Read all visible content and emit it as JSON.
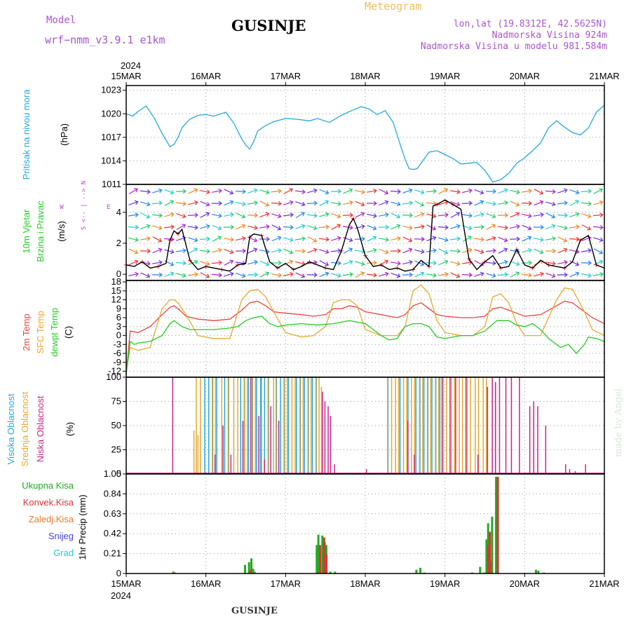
{
  "header": {
    "model_label": "Model",
    "model_name": "wrf−nmm_v3.9.1  e1km",
    "station_title": "GUSINJE",
    "meteogram_label": "Meteogram",
    "coords": "lon,lat (19.8312E, 42.5625N)",
    "elevation": "Nadmorska Visina 924m",
    "model_elevation": "Nadmorska Visina u modelu 981.584m",
    "year_top": "2024",
    "year_bottom": "2024",
    "footer_title": "GUSINJE",
    "credit": "made by Angel"
  },
  "colors": {
    "pressure": "#22a8e0",
    "temp2m": "#f04040",
    "sfc": "#e8a830",
    "dew": "#22cc22",
    "high_cloud": "#22a8e0",
    "mid_cloud": "#e8a830",
    "low_cloud": "#cc2288",
    "total_precip": "#22aa22",
    "conv_precip": "#dd3333",
    "frozen_precip": "#ee7722",
    "snow": "#4444dd",
    "hail": "#22cccc",
    "wind_speed": "#000000",
    "wind_dir": "#ff2222",
    "wind_compass": "#bb44dd",
    "label_purple": "#aa55cc",
    "meteogram": "#e8c060"
  },
  "chart_data": [
    {
      "type": "line",
      "panel": "pressure",
      "ylabel_lines": [
        "Pritisak na nivou mora",
        "(hPa)"
      ],
      "y_ticks": [
        1011,
        1014,
        1017,
        1020,
        1023
      ],
      "ylim": [
        1011,
        1023.6
      ],
      "x_ticks": [
        "15MAR",
        "16MAR",
        "17MAR",
        "18MAR",
        "19MAR",
        "20MAR",
        "21MAR"
      ],
      "xlim_days": [
        0,
        6
      ],
      "series": [
        {
          "color_key": "pressure",
          "x": [
            0,
            0.08,
            0.15,
            0.25,
            0.35,
            0.45,
            0.55,
            0.6,
            0.65,
            0.7,
            0.75,
            0.8,
            0.9,
            1.0,
            1.1,
            1.25,
            1.35,
            1.45,
            1.5,
            1.55,
            1.6,
            1.65,
            1.75,
            1.85,
            2.0,
            2.15,
            2.3,
            2.4,
            2.55,
            2.7,
            2.85,
            2.95,
            3.05,
            3.15,
            3.25,
            3.35,
            3.45,
            3.5,
            3.55,
            3.6,
            3.65,
            3.7,
            3.8,
            3.9,
            4.0,
            4.1,
            4.2,
            4.3,
            4.4,
            4.5,
            4.6,
            4.7,
            4.8,
            4.9,
            5.0,
            5.1,
            5.2,
            5.3,
            5.4,
            5.5,
            5.6,
            5.7,
            5.8,
            5.9,
            6.0
          ],
          "y": [
            1020,
            1019.7,
            1020.3,
            1021,
            1019.5,
            1017.5,
            1015.8,
            1016.1,
            1017,
            1018.2,
            1018.8,
            1019.3,
            1019.8,
            1019.9,
            1019.7,
            1020.2,
            1018.8,
            1016.8,
            1016,
            1015.5,
            1016.5,
            1017.8,
            1018.5,
            1019,
            1019.4,
            1019.3,
            1019.1,
            1019.4,
            1018.9,
            1019.8,
            1020.5,
            1020.9,
            1020.6,
            1019.9,
            1020.4,
            1018.9,
            1015.7,
            1014.2,
            1013,
            1012.9,
            1013,
            1013.7,
            1015.1,
            1015.3,
            1014.8,
            1014.3,
            1013.6,
            1013.7,
            1013.8,
            1012.8,
            1011.3,
            1011.6,
            1012.4,
            1013.7,
            1014.4,
            1015.3,
            1016.3,
            1018.2,
            1019.1,
            1018.3,
            1017.6,
            1017.3,
            1018.2,
            1020.2,
            1021.1
          ]
        }
      ]
    },
    {
      "type": "line",
      "panel": "wind",
      "ylabel_lines": [
        "10m Vjetar",
        "Brzina i Pravac",
        "(m/s)"
      ],
      "compass_lines": [
        "N",
        "^",
        "|",
        "W <-- --> E",
        "|",
        "v",
        "S"
      ],
      "y_ticks": [
        0,
        2,
        4
      ],
      "ylim": [
        -0.4,
        5.8
      ],
      "series": [
        {
          "name": "speed",
          "color_key": "wind_speed",
          "x": [
            0,
            0.1,
            0.2,
            0.3,
            0.4,
            0.5,
            0.55,
            0.6,
            0.65,
            0.7,
            0.8,
            0.9,
            1.0,
            1.1,
            1.2,
            1.3,
            1.4,
            1.5,
            1.55,
            1.6,
            1.7,
            1.8,
            1.9,
            2.0,
            2.1,
            2.2,
            2.3,
            2.4,
            2.5,
            2.6,
            2.7,
            2.8,
            2.85,
            2.9,
            3.0,
            3.1,
            3.2,
            3.3,
            3.4,
            3.5,
            3.6,
            3.7,
            3.8,
            3.85,
            3.9,
            4.0,
            4.1,
            4.2,
            4.3,
            4.4,
            4.5,
            4.6,
            4.7,
            4.8,
            4.9,
            5.0,
            5.1,
            5.2,
            5.3,
            5.4,
            5.5,
            5.6,
            5.7,
            5.8,
            5.9,
            6.0
          ],
          "y": [
            0.6,
            0.5,
            0.8,
            0.4,
            0.5,
            0.7,
            2.2,
            2.8,
            2.6,
            2.9,
            0.9,
            0.3,
            0.5,
            0.4,
            0.3,
            0.2,
            0.6,
            0.7,
            2.4,
            2.6,
            2.5,
            0.8,
            0.4,
            0.7,
            0.3,
            0.5,
            0.8,
            0.6,
            0.4,
            0.3,
            1.5,
            3.2,
            3.6,
            3.0,
            1.2,
            0.5,
            0.6,
            0.3,
            0.4,
            0.2,
            0.3,
            0.9,
            0.5,
            4.4,
            4.5,
            4.8,
            4.5,
            4.2,
            1.0,
            0.3,
            0.8,
            1.2,
            0.4,
            0.5,
            1.6,
            0.6,
            0.4,
            0.9,
            0.6,
            0.5,
            0.4,
            0.8,
            2.2,
            2.5,
            0.6,
            0.4
          ]
        }
      ]
    },
    {
      "type": "line",
      "panel": "temperature",
      "ylabel_lines": [
        "2m Temp",
        "SFC Temp",
        "dewpt Temp",
        "(C)"
      ],
      "y_ticks": [
        -12,
        -9,
        -6,
        -3,
        0,
        3,
        6,
        9,
        12,
        15,
        18
      ],
      "ylim": [
        -14,
        18.5
      ],
      "series": [
        {
          "name": "2m Temp",
          "color_key": "temp2m",
          "x": [
            0,
            0.05,
            0.15,
            0.3,
            0.45,
            0.55,
            0.6,
            0.65,
            0.75,
            0.9,
            1.1,
            1.3,
            1.45,
            1.55,
            1.65,
            1.75,
            1.85,
            2.0,
            2.2,
            2.35,
            2.5,
            2.6,
            2.7,
            2.8,
            2.9,
            3.0,
            3.2,
            3.4,
            3.5,
            3.6,
            3.7,
            3.8,
            3.9,
            4.0,
            4.2,
            4.35,
            4.5,
            4.6,
            4.7,
            4.8,
            4.9,
            5.0,
            5.2,
            5.4,
            5.5,
            5.6,
            5.75,
            5.85,
            6.0
          ],
          "y": [
            -13,
            1.5,
            1,
            3,
            7,
            9.5,
            10,
            9,
            6.5,
            5.5,
            5,
            5.5,
            8.5,
            11,
            11.5,
            10,
            8,
            7.5,
            7,
            6.5,
            7,
            9,
            9,
            10,
            9.5,
            8,
            7,
            6,
            7,
            10,
            11,
            9,
            7,
            6.5,
            6,
            6,
            6.5,
            9,
            9.5,
            8.5,
            7.5,
            6.5,
            7,
            10,
            11.5,
            11,
            8,
            6,
            4
          ]
        },
        {
          "name": "SFC Temp",
          "color_key": "sfc",
          "x": [
            0,
            0.05,
            0.15,
            0.3,
            0.45,
            0.55,
            0.6,
            0.65,
            0.75,
            0.9,
            1.1,
            1.3,
            1.45,
            1.55,
            1.65,
            1.75,
            1.85,
            2.0,
            2.2,
            2.35,
            2.5,
            2.6,
            2.7,
            2.8,
            2.9,
            3.0,
            3.2,
            3.4,
            3.5,
            3.6,
            3.7,
            3.8,
            3.9,
            4.0,
            4.2,
            4.35,
            4.5,
            4.6,
            4.7,
            4.8,
            4.9,
            5.0,
            5.2,
            5.4,
            5.5,
            5.6,
            5.75,
            5.85,
            6.0
          ],
          "y": [
            -12,
            -4,
            -5,
            -4,
            9,
            12,
            12,
            11,
            7,
            0,
            -1,
            -1,
            12,
            15,
            15.5,
            13,
            8,
            1,
            -0.5,
            0,
            3,
            11,
            12,
            12,
            10,
            2,
            0,
            0,
            3,
            15,
            17,
            14,
            5,
            1,
            0,
            0,
            3,
            13,
            14,
            11,
            4,
            0,
            0,
            12,
            16,
            15.5,
            8,
            2,
            0
          ]
        },
        {
          "name": "dewpt Temp",
          "color_key": "dew",
          "x": [
            0,
            0.05,
            0.1,
            0.15,
            0.3,
            0.45,
            0.55,
            0.6,
            0.7,
            0.8,
            0.9,
            1.1,
            1.3,
            1.4,
            1.5,
            1.6,
            1.7,
            1.8,
            1.9,
            2.0,
            2.2,
            2.4,
            2.6,
            2.8,
            3.0,
            3.1,
            3.2,
            3.3,
            3.4,
            3.5,
            3.6,
            3.7,
            3.8,
            3.9,
            4.0,
            4.2,
            4.35,
            4.5,
            4.65,
            4.8,
            4.9,
            5.0,
            5.1,
            5.2,
            5.3,
            5.45,
            5.55,
            5.65,
            5.75,
            5.8,
            5.9,
            6.0
          ],
          "y": [
            -13,
            -2,
            -3,
            -2.5,
            -2,
            0,
            4,
            5,
            3,
            2,
            2,
            2,
            2.5,
            3,
            5,
            6,
            6.5,
            4,
            3,
            3.5,
            4,
            3.5,
            4,
            5,
            4,
            2,
            0,
            -1.5,
            -1,
            3,
            4,
            4,
            3,
            -0.5,
            -1,
            0,
            0,
            1.5,
            5,
            5,
            3.5,
            3,
            4,
            2,
            -1,
            -4,
            -3,
            -6,
            -3,
            -0.5,
            -1,
            -2
          ]
        }
      ]
    },
    {
      "type": "bar",
      "panel": "cloud",
      "ylabel_lines": [
        "Visoka Oblacnost",
        "Srednja Oblacnost",
        "Niska Oblacnost",
        "(%)"
      ],
      "y_ticks": [
        0,
        25,
        50,
        75,
        100
      ],
      "ylim": [
        0,
        100
      ],
      "series": [
        {
          "name": "Visoka Oblacnost",
          "color_key": "high_cloud",
          "x": [
            1.0,
            1.05,
            1.1,
            1.15,
            1.25,
            1.3,
            1.45,
            1.5,
            1.55,
            1.6,
            1.65,
            1.7,
            1.75,
            1.8,
            1.9,
            1.95,
            2.0,
            2.05,
            2.15,
            2.2,
            2.25,
            2.3,
            2.35,
            2.4,
            3.3,
            3.45,
            3.55,
            3.65,
            3.7,
            3.75,
            3.8,
            3.85,
            3.9,
            3.95
          ],
          "values": [
            100,
            100,
            100,
            100,
            100,
            100,
            100,
            100,
            100,
            100,
            100,
            100,
            100,
            100,
            100,
            100,
            100,
            100,
            100,
            100,
            100,
            100,
            100,
            100,
            100,
            100,
            100,
            100,
            100,
            100,
            100,
            100,
            100,
            100
          ]
        },
        {
          "name": "Srednja Oblacnost",
          "color_key": "mid_cloud",
          "x": [
            0.85,
            0.88,
            0.9,
            0.93,
            1.08,
            1.12,
            1.2,
            1.28,
            1.35,
            1.4,
            1.48,
            1.52,
            1.58,
            1.62,
            1.7,
            1.78,
            1.85,
            1.88,
            1.98,
            2.02,
            2.08,
            2.12,
            2.18,
            2.22,
            2.28,
            2.32,
            2.38,
            2.42,
            2.45,
            3.28,
            3.33,
            3.38,
            3.42,
            3.48,
            3.52,
            3.58,
            3.62,
            3.68,
            3.72,
            3.78,
            3.82,
            3.88,
            3.92,
            3.98,
            4.02,
            4.08,
            4.12,
            4.18,
            4.22,
            4.28,
            4.32,
            4.38,
            4.42,
            4.48,
            4.52
          ],
          "values": [
            45,
            100,
            40,
            100,
            100,
            100,
            100,
            100,
            100,
            100,
            100,
            100,
            100,
            100,
            100,
            100,
            100,
            100,
            100,
            100,
            100,
            100,
            100,
            100,
            100,
            100,
            100,
            100,
            90,
            100,
            100,
            100,
            100,
            100,
            100,
            100,
            100,
            100,
            100,
            100,
            100,
            100,
            100,
            100,
            100,
            100,
            100,
            100,
            100,
            100,
            100,
            100,
            100,
            100,
            100
          ]
        },
        {
          "name": "Niska Oblacnost",
          "color_key": "low_cloud",
          "x": [
            0.57,
            1.1,
            1.2,
            1.3,
            1.45,
            1.55,
            1.65,
            1.72,
            1.8,
            1.9,
            2.45,
            2.48,
            2.52,
            2.55,
            2.6,
            3.0,
            3.52,
            3.6,
            3.95,
            4.05,
            4.12,
            4.25,
            4.4,
            4.52,
            4.58,
            4.62,
            4.67,
            4.75,
            4.82,
            4.92,
            5.05,
            5.1,
            5.15,
            5.25,
            5.5,
            5.55,
            5.62,
            5.75
          ],
          "values": [
            100,
            20,
            50,
            20,
            55,
            100,
            60,
            15,
            70,
            55,
            85,
            75,
            70,
            60,
            10,
            5,
            55,
            20,
            100,
            100,
            100,
            100,
            20,
            90,
            100,
            95,
            100,
            100,
            100,
            100,
            70,
            75,
            70,
            50,
            10,
            5,
            3,
            10
          ]
        }
      ]
    },
    {
      "type": "bar",
      "panel": "precipitation",
      "ylabel_lines": [
        "1hr Precip (mm)"
      ],
      "legend": [
        "Ukupna Kisa",
        "Konvek.Kisa",
        "Zaledj.Kisa",
        "Snijeg",
        "Grad"
      ],
      "y_ticks": [
        0,
        0.21,
        0.42,
        0.63,
        0.84,
        1.05
      ],
      "ylim": [
        0,
        1.05
      ],
      "series": [
        {
          "name": "Ukupna Kisa",
          "color_key": "total_precip",
          "x": [
            0.6,
            1.5,
            1.55,
            1.58,
            1.6,
            1.62,
            2.4,
            2.42,
            2.47,
            2.5,
            2.52,
            2.57,
            2.63,
            3.65,
            3.7,
            3.75,
            4.35,
            4.45,
            4.5,
            4.53,
            4.55,
            4.58,
            4.6,
            4.65,
            5.15,
            5.18,
            5.25
          ],
          "values": [
            0.02,
            0.09,
            0.12,
            0.16,
            0.05,
            0.02,
            0.3,
            0.41,
            0.4,
            0.33,
            0.3,
            0.02,
            0.02,
            0.04,
            0.06,
            0.01,
            0.01,
            0.07,
            0.01,
            0.36,
            0.53,
            0.13,
            0.6,
            1.02,
            0.04,
            0.03,
            0.01
          ]
        },
        {
          "name": "Konvek.Kisa",
          "color_key": "conv_precip",
          "x": [
            0.6,
            1.55,
            2.42,
            2.47,
            2.5,
            4.53,
            4.55,
            4.65
          ],
          "values": [
            0.01,
            0.04,
            0.3,
            0.38,
            0.2,
            0.3,
            0.44,
            1.02
          ]
        }
      ]
    }
  ]
}
